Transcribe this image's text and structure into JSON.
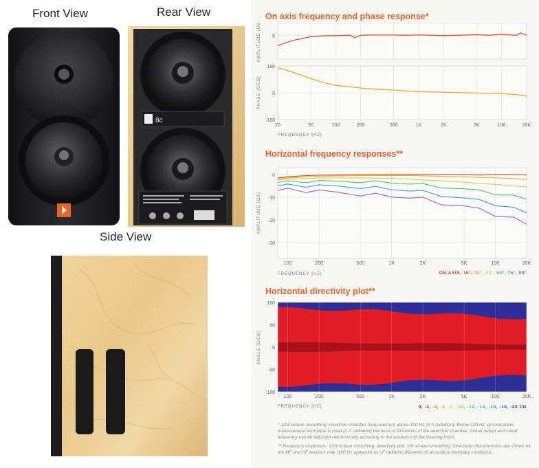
{
  "views": {
    "front": "Front View",
    "rear": "Rear View",
    "side": "Side View"
  },
  "rear_panel": {
    "brand_model": "8c"
  },
  "footnotes": {
    "note1": "* 1/24 octave smoothing. Anechoic chamber measurement above 100 Hz (4 π radiation). Below 100 Hz, ground plane measurement technique is used (2 π radiation) because of limitations of the anechoic chamber. Actual output and cutoff frequency can be adjusted electronically according to the acoustics of the listening room.",
    "note2": "** Frequency responses: 1/24 octave smoothing; directivity plot: 1/6 octave smoothing. Directivity characteristics are shown for the MF and HF sections only (100 Hz upwards) as LF radiation depends on acoustical boundary conditions."
  },
  "colors": {
    "accent": "#e8622a",
    "amplitude": "#e5502a",
    "phase": "#f5a623",
    "wood": "#e6c98a",
    "cabinet": "#1f1f21"
  },
  "chart_data": [
    {
      "type": "line",
      "title": "On axis frequency and phase response*",
      "xlabel": "FREQUENCY [HZ]",
      "x_ticks": [
        "20",
        "50",
        "100",
        "200",
        "500",
        "1K",
        "2K",
        "5K",
        "10K",
        "20K"
      ],
      "x_scale": "log",
      "xlim": [
        20,
        20000
      ],
      "panels": [
        {
          "ylabel": "AMPLITUDE [DB]",
          "y_ticks": [
            "0"
          ],
          "ylim": [
            -8,
            4
          ]
        },
        {
          "ylabel": "PHASE [DEG]",
          "y_ticks": [
            "180",
            "0",
            "-180"
          ],
          "ylim": [
            -180,
            180
          ]
        }
      ],
      "series": [
        {
          "panel": 0,
          "x": [
            20,
            25,
            30,
            40,
            50,
            70,
            100,
            150,
            170,
            200,
            300,
            500,
            700,
            1000,
            2000,
            3000,
            5000,
            7000,
            10000,
            15000,
            17000,
            20000
          ],
          "values": [
            -3.5,
            -2.5,
            -1.8,
            -1,
            -0.5,
            -0.2,
            -0.1,
            0,
            -0.8,
            0,
            0.1,
            0.1,
            0,
            0.1,
            -0.1,
            0,
            0.2,
            0,
            0.3,
            0,
            0.8,
            0
          ]
        },
        {
          "panel": 1,
          "x": [
            20,
            30,
            50,
            70,
            100,
            150,
            200,
            300,
            500,
            700,
            1000,
            2000,
            3000,
            5000,
            7000,
            10000,
            15000,
            20000
          ],
          "values": [
            170,
            140,
            95,
            70,
            50,
            40,
            32,
            24,
            18,
            12,
            8,
            4,
            1,
            -2,
            -4,
            -6,
            -12,
            -22
          ]
        }
      ]
    },
    {
      "type": "line",
      "title": "Horizontal frequency responses**",
      "xlabel": "FREQUENCY [HZ]",
      "ylabel": "AMPLITUDE [DB]",
      "x_scale": "log",
      "xlim": [
        80,
        20000
      ],
      "ylim": [
        -37,
        3
      ],
      "x_ticks": [
        "100",
        "200",
        "500",
        "1K",
        "2K",
        "5K",
        "10K",
        "20K"
      ],
      "y_ticks": [
        "0",
        "-10",
        "-20",
        "-30"
      ],
      "legend_prefix": "ON AXIS,",
      "legend": [
        "15°,",
        "30°,",
        "45°,",
        "60°,",
        "75°,",
        "90°"
      ],
      "x": [
        80,
        100,
        150,
        200,
        300,
        500,
        700,
        1000,
        1500,
        2000,
        3000,
        5000,
        7000,
        10000,
        15000,
        20000
      ],
      "series": [
        {
          "values": [
            -1.5,
            -1,
            -0.5,
            -0.3,
            -0.2,
            -0.1,
            0,
            0,
            0,
            -0.1,
            0,
            0,
            -0.2,
            0,
            0,
            -0.2
          ],
          "color": "#d8401e"
        },
        {
          "values": [
            -2,
            -1.5,
            -1,
            -0.8,
            -0.6,
            -0.5,
            -0.5,
            -0.5,
            -0.5,
            -0.6,
            -0.8,
            -1,
            -1.3,
            -1.5,
            -1.8,
            -2.2
          ],
          "color": "#f5a623"
        },
        {
          "values": [
            -2.5,
            -2,
            -1.8,
            -1.6,
            -1.5,
            -1.5,
            -1.6,
            -1.7,
            -2,
            -2.4,
            -2.8,
            -3.4,
            -4,
            -4.4,
            -5,
            -5.5
          ],
          "color": "#d6d236"
        },
        {
          "values": [
            -3.5,
            -3.2,
            -3,
            -3,
            -3,
            -3.1,
            -3.3,
            -3.6,
            -4,
            -4.6,
            -5.4,
            -6.4,
            -7.2,
            -8.4,
            -9.5,
            -11
          ],
          "color": "#4cbf6a"
        },
        {
          "values": [
            -5,
            -4.8,
            -4.8,
            -5,
            -5.2,
            -5.5,
            -6,
            -6.4,
            -7,
            -7.8,
            -9,
            -10.5,
            -11.5,
            -13,
            -15,
            -17
          ],
          "color": "#3d9bd9"
        },
        {
          "values": [
            -7,
            -6.8,
            -7,
            -7.4,
            -8,
            -8.6,
            -9.2,
            -9.6,
            -10,
            -11,
            -12.5,
            -14,
            -15.5,
            -17.5,
            -19.5,
            -22
          ],
          "color": "#a25ec4"
        }
      ]
    },
    {
      "type": "heatmap",
      "title": "Horizontal directivity plot**",
      "xlabel": "FREQUENCY [HZ]",
      "ylabel": "ANGLE [DEG]",
      "x_scale": "log",
      "xlim": [
        80,
        20000
      ],
      "ylim": [
        -180,
        180
      ],
      "x_ticks": [
        "100",
        "200",
        "500",
        "1K",
        "2K",
        "5K",
        "10K",
        "20K"
      ],
      "y_ticks": [
        "180",
        "90",
        "0",
        "-90",
        "-180"
      ],
      "colorbar_labels": [
        "0,",
        "-2,",
        "-4,",
        "-6,",
        "-8,",
        "-10,",
        "-12,",
        "-14,",
        "-16,",
        "-18,",
        "-20"
      ],
      "colorbar_unit": "DB",
      "colorbar_colors": [
        "#a8111c",
        "#e11c25",
        "#f26a22",
        "#f6b21d",
        "#e9e82a",
        "#96d444",
        "#3fbf72",
        "#2fb9c6",
        "#3a8fd8",
        "#3557c8",
        "#2e2f96"
      ]
    }
  ]
}
